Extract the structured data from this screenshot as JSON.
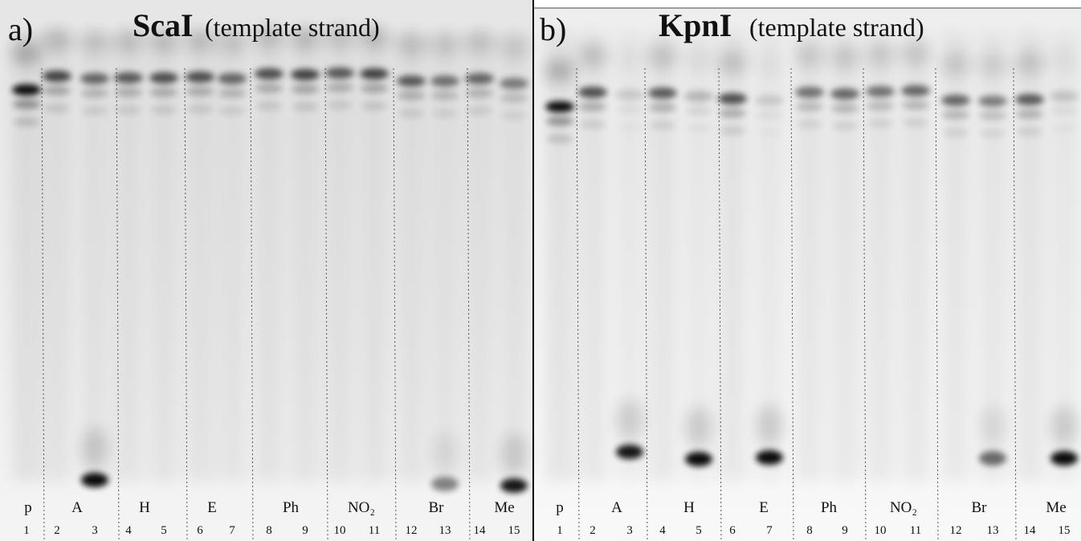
{
  "panels": [
    {
      "label": "a)",
      "title": "ScaI",
      "subtitle": "(template strand)",
      "groups": [
        "p",
        "A",
        "H",
        "E",
        "Ph",
        "NO₂",
        "Br",
        "Me"
      ],
      "lanes": [
        1,
        2,
        3,
        4,
        5,
        6,
        7,
        8,
        9,
        10,
        11,
        12,
        13,
        14,
        15
      ]
    },
    {
      "label": "b)",
      "title": "KpnI",
      "subtitle": "(template strand)",
      "groups": [
        "p",
        "A",
        "H",
        "E",
        "Ph",
        "NO₂",
        "Br",
        "Me"
      ],
      "lanes": [
        1,
        2,
        3,
        4,
        5,
        6,
        7,
        8,
        9,
        10,
        11,
        12,
        13,
        14,
        15
      ]
    }
  ]
}
